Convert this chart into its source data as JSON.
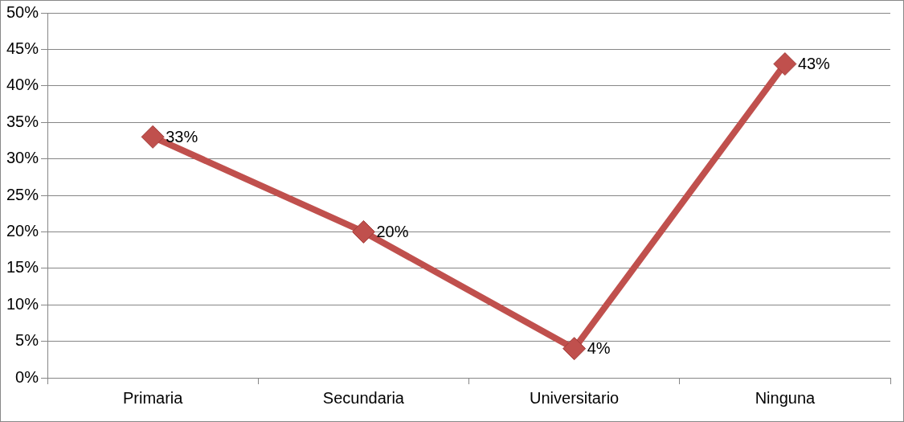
{
  "chart_data": {
    "type": "line",
    "categories": [
      "Primaria",
      "Secundaria",
      "Universitario",
      "Ninguna"
    ],
    "series": [
      {
        "color": "#c0504d",
        "values": [
          33,
          20,
          4,
          43
        ],
        "value_labels": [
          "33%",
          "20%",
          "4%",
          "43%"
        ]
      }
    ],
    "ylim": [
      0,
      50
    ],
    "yticks": [
      {
        "value": 0,
        "label": "0%"
      },
      {
        "value": 5,
        "label": "5%"
      },
      {
        "value": 10,
        "label": "10%"
      },
      {
        "value": 15,
        "label": "15%"
      },
      {
        "value": 20,
        "label": "20%"
      },
      {
        "value": 25,
        "label": "25%"
      },
      {
        "value": 30,
        "label": "30%"
      },
      {
        "value": 35,
        "label": "35%"
      },
      {
        "value": 40,
        "label": "40%"
      },
      {
        "value": 45,
        "label": "45%"
      },
      {
        "value": 50,
        "label": "50%"
      }
    ],
    "grid": "y",
    "legend": false,
    "marker": "diamond",
    "line_style": "solid"
  }
}
